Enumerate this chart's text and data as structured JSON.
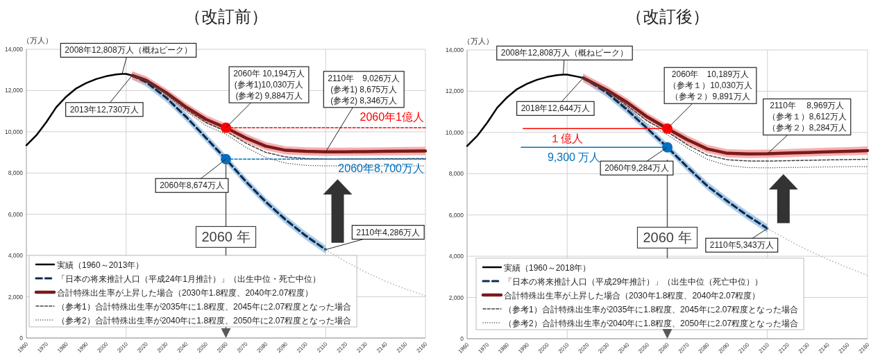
{
  "chart_data": [
    {
      "type": "line",
      "title": "（改訂前）",
      "ylabel": "（万人）",
      "xlim": [
        1960,
        2160
      ],
      "xticks": [
        1960,
        1970,
        1980,
        1990,
        2000,
        2010,
        2020,
        2030,
        2040,
        2050,
        2060,
        2070,
        2080,
        2090,
        2100,
        2110,
        2120,
        2130,
        2140,
        2150,
        2160
      ],
      "ylim": [
        0,
        14000
      ],
      "yticks": [
        0,
        {
          "value": 2000,
          "label": "2,000"
        },
        {
          "value": 4000,
          "label": "4,000"
        },
        {
          "value": 6000,
          "label": "6,000"
        },
        {
          "value": 8000,
          "label": "8,000"
        },
        {
          "value": 10000,
          "label": "10,000"
        },
        {
          "value": 12000,
          "label": "12,000"
        },
        {
          "value": 14000,
          "label": "14,000"
        }
      ],
      "grid": "y",
      "legend": "bottom left",
      "ref_lines": [
        {
          "axis": "x",
          "value": 2010,
          "color": "#d0d0d0"
        },
        {
          "axis": "x",
          "value": 2060,
          "label": "2060 年",
          "color": "#595959"
        },
        {
          "axis": "x",
          "value": 2110,
          "color": "#d0d0d0"
        }
      ],
      "series": [
        {
          "name": "実績（1960～2013年）",
          "color": "#000000",
          "line_style": "solid",
          "x": [
            1960,
            1965,
            1970,
            1975,
            1980,
            1985,
            1990,
            1995,
            2000,
            2005,
            2008,
            2010,
            2013
          ],
          "values": [
            9342,
            9828,
            10466,
            11194,
            11706,
            12105,
            12361,
            12557,
            12693,
            12777,
            12808,
            12806,
            12730
          ]
        },
        {
          "name": "「日本の将来推計人口（平成24年1月推計）」（出生中位・死亡中位）",
          "color": "#0d2b4e",
          "line_style": "dashed",
          "x": [
            2013,
            2020,
            2030,
            2040,
            2050,
            2060,
            2070,
            2080,
            2090,
            2100,
            2110
          ],
          "values": [
            12730,
            12410,
            11662,
            10728,
            9708,
            8674,
            7590,
            6600,
            5730,
            4959,
            4286
          ],
          "lower": [
            12530,
            12210,
            11462,
            10528,
            9508,
            8474,
            7390,
            6400,
            5530,
            4759,
            4086
          ],
          "upper": [
            12930,
            12610,
            11862,
            10928,
            9908,
            8874,
            7790,
            6800,
            5930,
            5159,
            4486
          ]
        },
        {
          "color": "#bfbfbf",
          "line_style": "dotted",
          "x": [
            2110,
            2120,
            2130,
            2140,
            2150,
            2160
          ],
          "values": [
            4286,
            3700,
            3200,
            2750,
            2380,
            2050
          ]
        },
        {
          "name": "合計特殊出生率が上昇した場合（2030年1.8程度、2040年2.07程度）",
          "color": "#7b1a1a",
          "line_style": "solid",
          "x": [
            2013,
            2020,
            2030,
            2040,
            2050,
            2060,
            2070,
            2080,
            2090,
            2100,
            2110,
            2120,
            2130,
            2140,
            2150,
            2160
          ],
          "values": [
            12730,
            12500,
            11900,
            11200,
            10600,
            10194,
            9700,
            9300,
            9100,
            9050,
            9026,
            9030,
            9040,
            9050,
            9060,
            9070
          ],
          "lower": [
            12530,
            12300,
            11700,
            11000,
            10400,
            9994,
            9500,
            9100,
            8900,
            8850,
            8826,
            8830,
            8840,
            8850,
            8860,
            8870
          ],
          "upper": [
            12930,
            12700,
            12100,
            11400,
            10800,
            10394,
            9900,
            9500,
            9300,
            9250,
            9226,
            9230,
            9240,
            9250,
            9260,
            9270
          ]
        },
        {
          "name": "（参考1）合計特殊出生率が2035年に1.8程度、2045年に2.07程度となった場合",
          "color": "#404040",
          "line_style": "dashed",
          "x": [
            2013,
            2020,
            2030,
            2040,
            2050,
            2060,
            2070,
            2080,
            2090,
            2100,
            2110,
            2120,
            2140,
            2160
          ],
          "values": [
            12730,
            12480,
            11850,
            11100,
            10450,
            10030,
            9450,
            9000,
            8780,
            8700,
            8675,
            8680,
            8690,
            8700
          ]
        },
        {
          "name": "（参考2）合計特殊出生率が2040年に1.8程度、2050年に2.07程度となった場合",
          "color": "#404040",
          "line_style": "dotted",
          "x": [
            2013,
            2020,
            2030,
            2040,
            2050,
            2060,
            2070,
            2080,
            2090,
            2100,
            2110,
            2120,
            2140,
            2160
          ],
          "values": [
            12730,
            12470,
            11800,
            11000,
            10300,
            9884,
            9250,
            8750,
            8480,
            8370,
            8346,
            8348,
            8350,
            8350
          ]
        },
        {
          "name": "2060年1億人",
          "color": "#ff0000",
          "line_style": "dashed",
          "x": [
            2060,
            2160
          ],
          "values": [
            10194,
            10194
          ]
        },
        {
          "name": "2060年8,700万人",
          "color": "#0070c0",
          "line_style": "dashed",
          "x": [
            2060,
            2160
          ],
          "values": [
            8674,
            8674
          ]
        },
        {
          "type": "scatter",
          "marker": "circle",
          "x": [
            2060,
            2060
          ],
          "values": [
            10194,
            8674
          ],
          "colors": [
            "#ff0000",
            "#0070c0"
          ]
        }
      ],
      "annotations": [
        {
          "text": "2008年12,808万人（概ねピーク）",
          "x": 2008,
          "y": 12808
        },
        {
          "text": "2013年12,730万人",
          "x": 2013,
          "y": 12730
        },
        {
          "text": "2060年 10,194万人",
          "x": 2060,
          "y": 10194
        },
        "(参考1)10,030万人",
        "(参考2) 9,884万人",
        {
          "text": "2110年　9,026万人",
          "x": 2110,
          "y": 9026
        },
        "(参考1) 8,675万人",
        "(参考2) 8,346万人",
        {
          "text": "2060年8,674万人",
          "x": 2060,
          "y": 8674
        },
        {
          "text": "2110年4,286万人",
          "x": 2110,
          "y": 4286
        }
      ]
    },
    {
      "type": "line",
      "title": "（改訂後）",
      "ylabel": "（万人）",
      "xlim": [
        1960,
        2160
      ],
      "xticks": [
        1960,
        1970,
        1980,
        1990,
        2000,
        2010,
        2020,
        2030,
        2040,
        2050,
        2060,
        2070,
        2080,
        2090,
        2100,
        2110,
        2120,
        2130,
        2140,
        2150,
        2160
      ],
      "ylim": [
        0,
        14000
      ],
      "yticks": [
        0,
        {
          "value": 2000,
          "label": "2,000"
        },
        {
          "value": 4000,
          "label": "4,000"
        },
        {
          "value": 6000,
          "label": "6,000"
        },
        {
          "value": 8000,
          "label": "8,000"
        },
        {
          "value": 10000,
          "label": "10,000"
        },
        {
          "value": 12000,
          "label": "12,000"
        },
        {
          "value": 14000,
          "label": "14,000"
        }
      ],
      "grid": "y",
      "legend": "bottom left",
      "ref_lines": [
        {
          "axis": "x",
          "value": 2010,
          "color": "#d0d0d0"
        },
        {
          "axis": "x",
          "value": 2060,
          "label": "2060 年",
          "color": "#595959"
        },
        {
          "axis": "x",
          "value": 2110,
          "color": "#d0d0d0"
        }
      ],
      "series": [
        {
          "name": "実績（1960～2018年）",
          "color": "#000000",
          "line_style": "solid",
          "x": [
            1960,
            1965,
            1970,
            1975,
            1980,
            1985,
            1990,
            1995,
            2000,
            2005,
            2008,
            2010,
            2015,
            2018
          ],
          "values": [
            9342,
            9828,
            10466,
            11194,
            11706,
            12105,
            12361,
            12557,
            12693,
            12777,
            12808,
            12806,
            12709,
            12644
          ]
        },
        {
          "name": "「日本の将来推計人口（平成29年推計）」（出生中位（死亡中位））",
          "color": "#0d2b4e",
          "line_style": "dashed",
          "x": [
            2018,
            2020,
            2030,
            2040,
            2050,
            2060,
            2070,
            2080,
            2090,
            2100,
            2110
          ],
          "values": [
            12644,
            12532,
            11913,
            11092,
            10192,
            9284,
            8323,
            7407,
            6668,
            5972,
            5343
          ],
          "lower": [
            12444,
            12332,
            11713,
            10892,
            9992,
            9084,
            8123,
            7207,
            6468,
            5772,
            5143
          ],
          "upper": [
            12844,
            12732,
            12113,
            11292,
            10392,
            9484,
            8523,
            7607,
            6868,
            6172,
            5543
          ]
        },
        {
          "color": "#bfbfbf",
          "line_style": "dotted",
          "x": [
            2110,
            2120,
            2130,
            2140,
            2150,
            2160
          ],
          "values": [
            5343,
            4800,
            4300,
            3850,
            3450,
            3070
          ]
        },
        {
          "name": "合計特殊出生率が上昇した場合（2030年1.8程度、2040年2.07程度）",
          "color": "#7b1a1a",
          "line_style": "solid",
          "x": [
            2018,
            2030,
            2040,
            2050,
            2060,
            2070,
            2080,
            2090,
            2100,
            2110,
            2120,
            2130,
            2140,
            2150,
            2160
          ],
          "values": [
            12644,
            12050,
            11450,
            10750,
            10189,
            9650,
            9200,
            8990,
            8960,
            8969,
            9000,
            9030,
            9060,
            9090,
            9120
          ],
          "lower": [
            12444,
            11850,
            11250,
            10550,
            9989,
            9450,
            9000,
            8790,
            8760,
            8769,
            8800,
            8830,
            8860,
            8890,
            8920
          ],
          "upper": [
            12844,
            12250,
            11650,
            10950,
            10389,
            9850,
            9400,
            9190,
            9160,
            9169,
            9200,
            9230,
            9260,
            9290,
            9320
          ]
        },
        {
          "name": "（参考1）合計特殊出生率が2035年に1.8程度、2045年に2.07程度となった場合",
          "color": "#404040",
          "line_style": "dashed",
          "x": [
            2018,
            2030,
            2040,
            2050,
            2060,
            2070,
            2080,
            2090,
            2100,
            2110,
            2120,
            2140,
            2160
          ],
          "values": [
            12644,
            12000,
            11300,
            10550,
            10030,
            9400,
            8900,
            8680,
            8620,
            8612,
            8630,
            8670,
            8700
          ]
        },
        {
          "name": "（参考2）合計特殊出生率が2040年に1.8程度、2050年に2.07程度となった場合",
          "color": "#404040",
          "line_style": "dotted",
          "x": [
            2018,
            2030,
            2040,
            2050,
            2060,
            2070,
            2080,
            2090,
            2100,
            2110,
            2120,
            2140,
            2160
          ],
          "values": [
            12644,
            11950,
            11200,
            10400,
            9891,
            9250,
            8700,
            8400,
            8300,
            8284,
            8300,
            8330,
            8350
          ]
        },
        {
          "name": "１億人",
          "color": "#ff0000",
          "line_style": "solid",
          "x": [
            1988,
            2060
          ],
          "values": [
            10189,
            10189
          ]
        },
        {
          "name": "9,300 万人",
          "color": "#0070c0",
          "line_style": "solid",
          "x": [
            1987,
            2060
          ],
          "values": [
            9284,
            9284
          ]
        },
        {
          "type": "scatter",
          "marker": "circle",
          "x": [
            2060,
            2060
          ],
          "values": [
            10189,
            9284
          ],
          "colors": [
            "#ff0000",
            "#0070c0"
          ]
        }
      ],
      "annotations": [
        {
          "text": "2008年12,808万人（概ねピーク）",
          "x": 2008,
          "y": 12808
        },
        {
          "text": "2018年12,644万人",
          "x": 2018,
          "y": 12644
        },
        {
          "text": "2060年　10,189万人",
          "x": 2060,
          "y": 10189
        },
        "（参考１）10,030万人",
        "（参考２）9,891万人",
        {
          "text": "2110年　 8,969万人",
          "x": 2110,
          "y": 8969
        },
        "（参考１）8,612万人",
        "（参考２）8,284万人",
        {
          "text": "2060年9,284万人",
          "x": 2060,
          "y": 9284
        },
        {
          "text": "2110年5,343万人",
          "x": 2110,
          "y": 5343
        }
      ]
    }
  ]
}
